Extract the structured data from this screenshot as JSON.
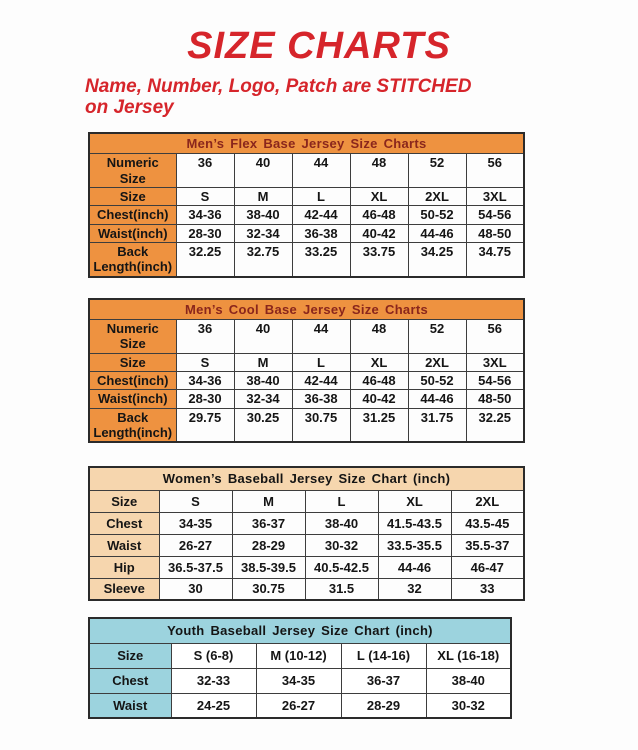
{
  "page": {
    "title": "SIZE CHARTS",
    "subtitle": "Name, Number, Logo, Patch are STITCHED on Jersey"
  },
  "colors": {
    "accent_red": "#d6252b",
    "orange": "#ee9240",
    "orange_title_text": "#8a261c",
    "peach": "#f6d6ae",
    "light_blue": "#9cd3de"
  },
  "tables": [
    {
      "name": "mens-flex",
      "title": "Men’s Flex Base Jersey Size Charts",
      "theme": "orange",
      "rows": [
        {
          "label": "Numeric Size",
          "values": [
            "36",
            "40",
            "44",
            "48",
            "52",
            "56"
          ]
        },
        {
          "label": "Size",
          "values": [
            "S",
            "M",
            "L",
            "XL",
            "2XL",
            "3XL"
          ]
        },
        {
          "label": "Chest(inch)",
          "values": [
            "34-36",
            "38-40",
            "42-44",
            "46-48",
            "50-52",
            "54-56"
          ]
        },
        {
          "label": "Waist(inch)",
          "values": [
            "28-30",
            "32-34",
            "36-38",
            "40-42",
            "44-46",
            "48-50"
          ]
        },
        {
          "label": "Back Length(inch)",
          "values": [
            "32.25",
            "32.75",
            "33.25",
            "33.75",
            "34.25",
            "34.75"
          ]
        }
      ]
    },
    {
      "name": "mens-cool",
      "title": "Men’s Cool Base Jersey Size Charts",
      "theme": "orange",
      "rows": [
        {
          "label": "Numeric Size",
          "values": [
            "36",
            "40",
            "44",
            "48",
            "52",
            "56"
          ]
        },
        {
          "label": "Size",
          "values": [
            "S",
            "M",
            "L",
            "XL",
            "2XL",
            "3XL"
          ]
        },
        {
          "label": "Chest(inch)",
          "values": [
            "34-36",
            "38-40",
            "42-44",
            "46-48",
            "50-52",
            "54-56"
          ]
        },
        {
          "label": "Waist(inch)",
          "values": [
            "28-30",
            "32-34",
            "36-38",
            "40-42",
            "44-46",
            "48-50"
          ]
        },
        {
          "label": "Back Length(inch)",
          "values": [
            "29.75",
            "30.25",
            "30.75",
            "31.25",
            "31.75",
            "32.25"
          ]
        }
      ]
    },
    {
      "name": "womens",
      "title": "Women’s Baseball Jersey Size Chart (inch)",
      "theme": "peach",
      "rows": [
        {
          "label": "Size",
          "values": [
            "S",
            "M",
            "L",
            "XL",
            "2XL"
          ]
        },
        {
          "label": "Chest",
          "values": [
            "34-35",
            "36-37",
            "38-40",
            "41.5-43.5",
            "43.5-45"
          ]
        },
        {
          "label": "Waist",
          "values": [
            "26-27",
            "28-29",
            "30-32",
            "33.5-35.5",
            "35.5-37"
          ]
        },
        {
          "label": "Hip",
          "values": [
            "36.5-37.5",
            "38.5-39.5",
            "40.5-42.5",
            "44-46",
            "46-47"
          ]
        },
        {
          "label": "Sleeve",
          "values": [
            "30",
            "30.75",
            "31.5",
            "32",
            "33"
          ]
        }
      ]
    },
    {
      "name": "youth",
      "title": "Youth Baseball Jersey Size Chart (inch)",
      "theme": "blue",
      "rows": [
        {
          "label": "Size",
          "values": [
            "S (6-8)",
            "M (10-12)",
            "L (14-16)",
            "XL (16-18)"
          ]
        },
        {
          "label": "Chest",
          "values": [
            "32-33",
            "34-35",
            "36-37",
            "38-40"
          ]
        },
        {
          "label": "Waist",
          "values": [
            "24-25",
            "26-27",
            "28-29",
            "30-32"
          ]
        }
      ]
    }
  ]
}
